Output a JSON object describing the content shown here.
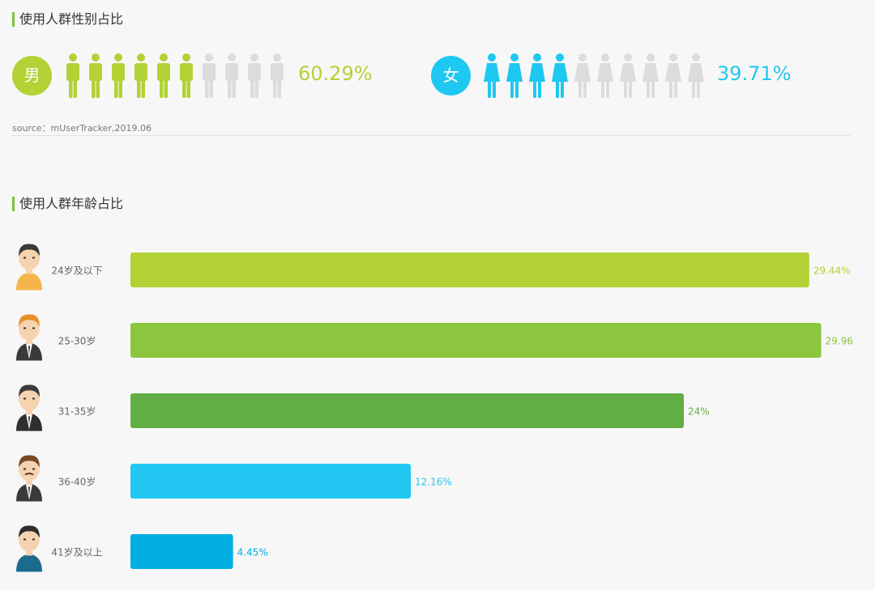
{
  "gender_section": {
    "title": "使用人群性别占比",
    "male": {
      "label": "男",
      "percent_text": "60.29%",
      "filled": 6,
      "total": 10,
      "color": "#b2d235"
    },
    "female": {
      "label": "女",
      "percent_text": "39.71%",
      "filled": 4,
      "total": 10,
      "color": "#1fc8f0"
    },
    "source": "source：mUserTracker,2019.06"
  },
  "age_section": {
    "title": "使用人群年龄占比"
  },
  "chart_data": {
    "type": "bar",
    "orientation": "horizontal",
    "categories": [
      "24岁及以下",
      "25-30岁",
      "31-35岁",
      "36-40岁",
      "41岁及以上"
    ],
    "values": [
      29.44,
      29.96,
      24,
      12.16,
      4.45
    ],
    "value_labels": [
      "29.44%",
      "29.96",
      "24%",
      "12.16%",
      "4.45%"
    ],
    "colors": [
      "#b2d235",
      "#8cc63f",
      "#62ae45",
      "#22c8f2",
      "#00aee0"
    ],
    "xlim": [
      0,
      30.5
    ],
    "title": "",
    "grid": false,
    "legend": "none"
  },
  "colors": {
    "inactive_person": "#dcdcdc",
    "accent_bar": "#7dc23a"
  }
}
